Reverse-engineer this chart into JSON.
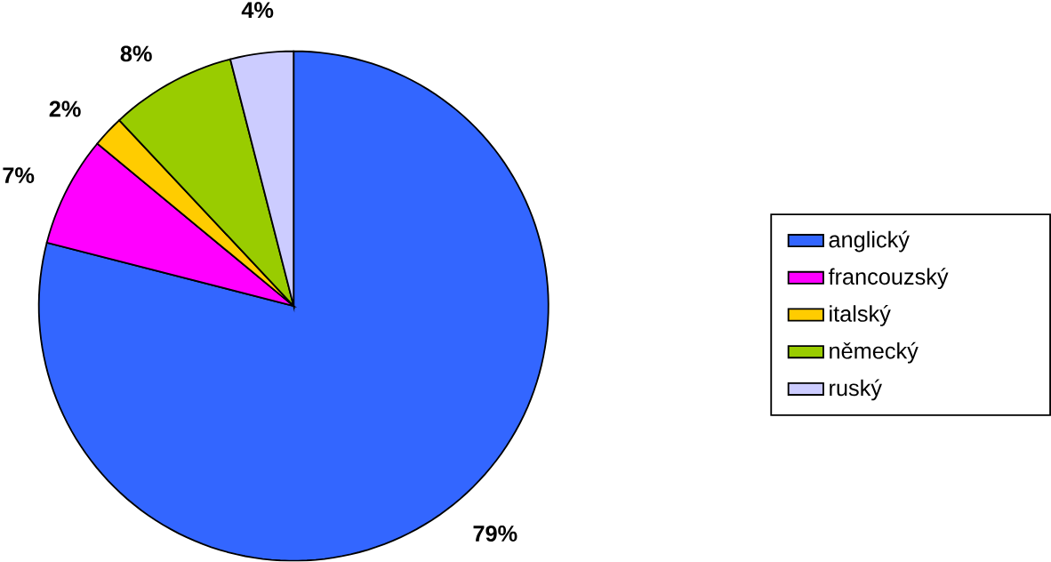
{
  "chart_data": {
    "type": "pie",
    "categories": [
      "anglický",
      "francouzský",
      "italský",
      "německý",
      "ruský"
    ],
    "values": [
      79,
      7,
      2,
      8,
      4
    ],
    "colors": [
      "#3366ff",
      "#ff00ff",
      "#ffcc00",
      "#99cc00",
      "#ccccff"
    ],
    "value_labels": [
      "79%",
      "7%",
      "2%",
      "8%",
      "4%"
    ],
    "legend": "right"
  }
}
